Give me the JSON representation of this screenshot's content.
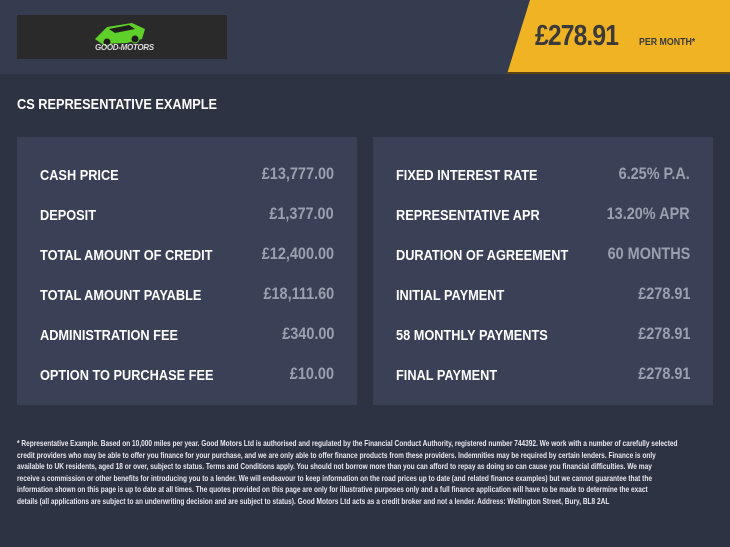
{
  "header": {
    "logo_text": "GOOD-MOTORS",
    "price": "£278.91",
    "per_month": "PER MONTH*",
    "accent": "#f0b323"
  },
  "title": "CS REPRESENTATIVE EXAMPLE",
  "left": [
    {
      "label": "CASH PRICE",
      "value": "£13,777.00"
    },
    {
      "label": "DEPOSIT",
      "value": "£1,377.00"
    },
    {
      "label": "TOTAL AMOUNT OF CREDIT",
      "value": "£12,400.00"
    },
    {
      "label": "TOTAL AMOUNT PAYABLE",
      "value": "£18,111.60"
    },
    {
      "label": "ADMINISTRATION FEE",
      "value": "£340.00"
    },
    {
      "label": "OPTION TO PURCHASE FEE",
      "value": "£10.00"
    }
  ],
  "right": [
    {
      "label": "FIXED INTEREST RATE",
      "value": "6.25% P.A."
    },
    {
      "label": "REPRESENTATIVE APR",
      "value": "13.20% APR"
    },
    {
      "label": "DURATION OF AGREEMENT",
      "value": "60 MONTHS"
    },
    {
      "label": "INITIAL PAYMENT",
      "value": "£278.91"
    },
    {
      "label": "58 MONTHLY PAYMENTS",
      "value": "£278.91"
    },
    {
      "label": "FINAL PAYMENT",
      "value": "£278.91"
    }
  ],
  "footer": [
    "* Representative Example. Based on 10,000 miles per year. Good Motors Ltd is authorised and regulated by the Financial Conduct Authority, registered number 744392. We work with a number of carefully selected",
    "credit providers who may be able to offer you finance for your purchase, and we are only able to offer finance products from these providers. Indemnities may be required by certain lenders. Finance is only",
    "available to UK residents, aged 18 or over, subject to status. Terms and Conditions apply. You should not borrow more than you can afford to repay as doing so can cause you financial difficulties. We may",
    "receive a commission or other benefits for introducing you to a lender. We will endeavour to keep information on the road prices up to date (and related finance examples) but we cannot guarantee that the",
    "information shown on this page is up to date at all times. The quotes provided on this page are only for illustrative purposes only and a full finance application will have to be made to determine the exact",
    "details (all applications are subject to an underwriting decision and are subject to status). Good Motors Ltd acts as a credit broker and not a lender. Address: Wellington Street, Bury, BL8 2AL"
  ]
}
